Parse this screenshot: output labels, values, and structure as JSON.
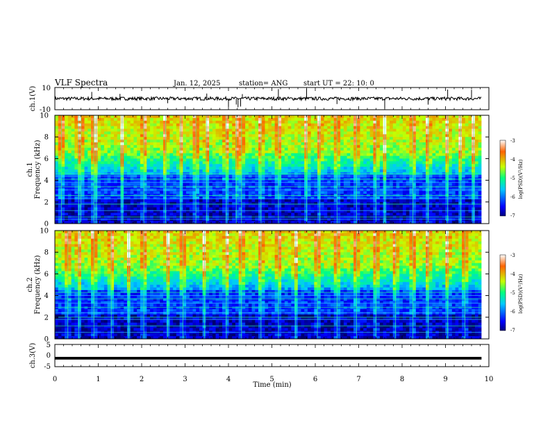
{
  "header": {
    "title": "VLF Spectra",
    "date": "Jan. 12, 2025",
    "station": "station= ANG",
    "start": "start  UT =  22: 10: 0"
  },
  "chart_data": [
    {
      "type": "line",
      "name": "ch1-waveform",
      "ylabel": "ch.1(V)",
      "ylim": [
        -10,
        10
      ],
      "yticks": [
        "10",
        "-10"
      ],
      "xlim": [
        0,
        10
      ],
      "baseline": 0,
      "noise_amplitude": 1.5,
      "spike_times_min": [
        0.85,
        1.5,
        2.6,
        3.5,
        4.0,
        4.18,
        4.22,
        4.28,
        4.32,
        5.15,
        5.8,
        6.5,
        7.6,
        8.6,
        9.05,
        9.6
      ]
    },
    {
      "type": "heatmap",
      "name": "ch1-spectrogram",
      "ylabel": "ch.1\nFrequency (kHz)",
      "ylabel_lines": [
        "ch.1",
        "Frequency (kHz)"
      ],
      "ylim": [
        0,
        10
      ],
      "yticks": [
        "0",
        "2",
        "4",
        "6",
        "8",
        "10"
      ],
      "xlim": [
        0,
        9.83
      ],
      "zlim": [
        -7,
        -3
      ],
      "colorbar_label": "log(PSD)(V²/Hz)",
      "colorbar_ticks": [
        "-3",
        "-4",
        "-5",
        "-6",
        "-7"
      ],
      "hum_lines_khz": [
        0.4,
        0.6,
        1.2,
        1.8,
        2.3,
        2.6,
        3.1,
        3.4,
        3.8,
        4.1,
        4.4,
        4.6
      ],
      "sferic_times_min": [
        0.15,
        0.55,
        0.6,
        0.9,
        0.95,
        1.55,
        2.05,
        2.55,
        2.9,
        3.25,
        3.5,
        3.95,
        4.18,
        4.3,
        4.75,
        5.15,
        5.8,
        6.1,
        6.5,
        6.95,
        7.4,
        7.6,
        8.25,
        8.6,
        9.05,
        9.35,
        9.65
      ]
    },
    {
      "type": "heatmap",
      "name": "ch2-spectrogram",
      "ylabel": "ch.2\nFrequency (kHz)",
      "ylabel_lines": [
        "ch.2",
        "Frequency (kHz)"
      ],
      "ylim": [
        0,
        10
      ],
      "yticks": [
        "0",
        "2",
        "4",
        "6",
        "8",
        "10"
      ],
      "xlim": [
        0,
        9.83
      ],
      "zlim": [
        -7,
        -3
      ],
      "colorbar_label": "log(PSD)(V²/Hz)",
      "colorbar_ticks": [
        "-3",
        "-4",
        "-5",
        "-6",
        "-7"
      ],
      "hum_lines_khz": [
        0.6,
        1.2,
        1.8,
        2.0,
        2.4,
        2.9,
        3.3,
        3.7,
        4.0,
        4.3
      ],
      "sferic_times_min": [
        0.3,
        0.55,
        0.9,
        1.3,
        1.7,
        2.05,
        2.6,
        2.95,
        3.45,
        3.95,
        4.3,
        4.75,
        5.15,
        5.55,
        6.05,
        6.5,
        6.95,
        7.4,
        7.85,
        8.25,
        8.6,
        9.05,
        9.45
      ]
    },
    {
      "type": "line",
      "name": "ch3-waveform",
      "ylabel": "ch.3(V)",
      "ylim": [
        -5,
        5
      ],
      "yticks": [
        "5",
        "0",
        "-5"
      ],
      "xlim": [
        0,
        10
      ],
      "xlabel": "Time (min)",
      "xticks": [
        "0",
        "1",
        "2",
        "3",
        "4",
        "5",
        "6",
        "7",
        "8",
        "9",
        "10"
      ],
      "level": -1.2,
      "thickness_v": 1.2
    }
  ],
  "colors": {
    "axis": "#000000",
    "trace": "#000000",
    "background": "#ffffff"
  }
}
